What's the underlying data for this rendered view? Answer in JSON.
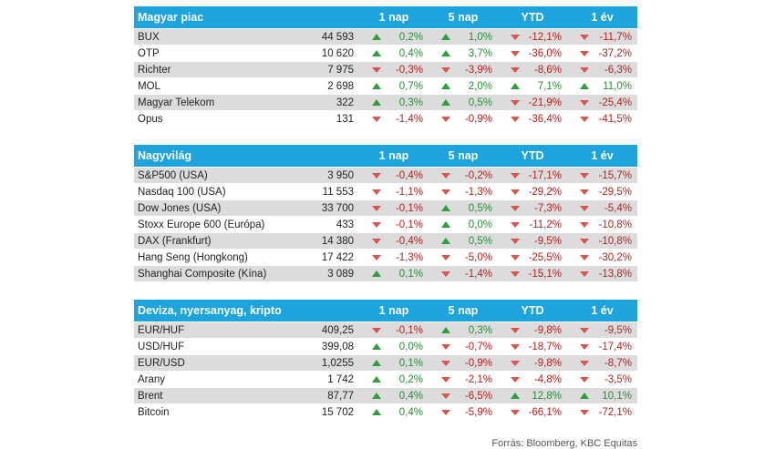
{
  "columns": [
    "1 nap",
    "5 nap",
    "YTD",
    "1 év"
  ],
  "sections": [
    {
      "title": "Magyar piac",
      "rows": [
        {
          "name": "BUX",
          "value": "44 593",
          "cells": [
            [
              "up",
              "0,2%"
            ],
            [
              "up",
              "1,0%"
            ],
            [
              "down",
              "-12,1%"
            ],
            [
              "down",
              "-11,7%"
            ]
          ]
        },
        {
          "name": "OTP",
          "value": "10 620",
          "cells": [
            [
              "up",
              "0,4%"
            ],
            [
              "up",
              "3,7%"
            ],
            [
              "down",
              "-36,0%"
            ],
            [
              "down",
              "-37,2%"
            ]
          ]
        },
        {
          "name": "Richter",
          "value": "7 975",
          "cells": [
            [
              "down",
              "-0,3%"
            ],
            [
              "down",
              "-3,9%"
            ],
            [
              "down",
              "-8,6%"
            ],
            [
              "down",
              "-6,3%"
            ]
          ]
        },
        {
          "name": "MOL",
          "value": "2 698",
          "cells": [
            [
              "up",
              "0,7%"
            ],
            [
              "up",
              "2,0%"
            ],
            [
              "up",
              "7,1%"
            ],
            [
              "up",
              "11,0%"
            ]
          ]
        },
        {
          "name": "Magyar Telekom",
          "value": "322",
          "cells": [
            [
              "up",
              "0,3%"
            ],
            [
              "up",
              "0,5%"
            ],
            [
              "down",
              "-21,9%"
            ],
            [
              "down",
              "-25,4%"
            ]
          ]
        },
        {
          "name": "Opus",
          "value": "131",
          "cells": [
            [
              "down",
              "-1,4%"
            ],
            [
              "down",
              "-0,9%"
            ],
            [
              "down",
              "-36,4%"
            ],
            [
              "down",
              "-41,5%"
            ]
          ]
        }
      ]
    },
    {
      "title": "Nagyvilág",
      "rows": [
        {
          "name": "S&P500 (USA)",
          "value": "3 950",
          "cells": [
            [
              "down",
              "-0,4%"
            ],
            [
              "down",
              "-0,2%"
            ],
            [
              "down",
              "-17,1%"
            ],
            [
              "down",
              "-15,7%"
            ]
          ]
        },
        {
          "name": "Nasdaq 100 (USA)",
          "value": "11 553",
          "cells": [
            [
              "down",
              "-1,1%"
            ],
            [
              "down",
              "-1,3%"
            ],
            [
              "down",
              "-29,2%"
            ],
            [
              "down",
              "-29,5%"
            ]
          ]
        },
        {
          "name": "Dow Jones (USA)",
          "value": "33 700",
          "cells": [
            [
              "down",
              "-0,1%"
            ],
            [
              "up",
              "0,5%"
            ],
            [
              "down",
              "-7,3%"
            ],
            [
              "down",
              "-5,4%"
            ]
          ]
        },
        {
          "name": "Stoxx Europe 600 (Európa)",
          "value": "433",
          "cells": [
            [
              "down",
              "-0,1%"
            ],
            [
              "up",
              "0,0%"
            ],
            [
              "down",
              "-11,2%"
            ],
            [
              "down",
              "-10,8%"
            ]
          ]
        },
        {
          "name": "DAX (Frankfurt)",
          "value": "14 380",
          "cells": [
            [
              "down",
              "-0,4%"
            ],
            [
              "up",
              "0,5%"
            ],
            [
              "down",
              "-9,5%"
            ],
            [
              "down",
              "-10,8%"
            ]
          ]
        },
        {
          "name": "Hang Seng (Hongkong)",
          "value": "17 422",
          "cells": [
            [
              "down",
              "-1,3%"
            ],
            [
              "down",
              "-5,0%"
            ],
            [
              "down",
              "-25,5%"
            ],
            [
              "down",
              "-30,2%"
            ]
          ]
        },
        {
          "name": "Shanghai Composite (Kína)",
          "value": "3 089",
          "cells": [
            [
              "up",
              "0,1%"
            ],
            [
              "down",
              "-1,4%"
            ],
            [
              "down",
              "-15,1%"
            ],
            [
              "down",
              "-13,8%"
            ]
          ]
        }
      ]
    },
    {
      "title": "Deviza, nyersanyag, kripto",
      "rows": [
        {
          "name": "EUR/HUF",
          "value": "409,25",
          "cells": [
            [
              "down",
              "-0,1%"
            ],
            [
              "up",
              "0,3%"
            ],
            [
              "down",
              "-9,8%"
            ],
            [
              "down",
              "-9,5%"
            ]
          ]
        },
        {
          "name": "USD/HUF",
          "value": "399,08",
          "cells": [
            [
              "up",
              "0,0%"
            ],
            [
              "down",
              "-0,7%"
            ],
            [
              "down",
              "-18,7%"
            ],
            [
              "down",
              "-17,4%"
            ]
          ]
        },
        {
          "name": "EUR/USD",
          "value": "1,0255",
          "cells": [
            [
              "up",
              "0,1%"
            ],
            [
              "down",
              "-0,9%"
            ],
            [
              "down",
              "-9,8%"
            ],
            [
              "down",
              "-8,7%"
            ]
          ]
        },
        {
          "name": "Arany",
          "value": "1 742",
          "cells": [
            [
              "up",
              "0,2%"
            ],
            [
              "down",
              "-2,1%"
            ],
            [
              "down",
              "-4,8%"
            ],
            [
              "down",
              "-3,5%"
            ]
          ]
        },
        {
          "name": "Brent",
          "value": "87,77",
          "cells": [
            [
              "up",
              "0,4%"
            ],
            [
              "down",
              "-6,5%"
            ],
            [
              "up",
              "12,8%"
            ],
            [
              "up",
              "10,1%"
            ]
          ]
        },
        {
          "name": "Bitcoin",
          "value": "15 702",
          "cells": [
            [
              "up",
              "0,4%"
            ],
            [
              "down",
              "-5,9%"
            ],
            [
              "down",
              "-66,1%"
            ],
            [
              "down",
              "-72,1%"
            ]
          ]
        }
      ]
    }
  ],
  "source": "Forrás: Bloomberg, KBC Equitas",
  "colors": {
    "header": "#1da3dd",
    "up": "#2e9e3e",
    "down": "#d9534f",
    "alt_row": "#dcdcdc"
  }
}
